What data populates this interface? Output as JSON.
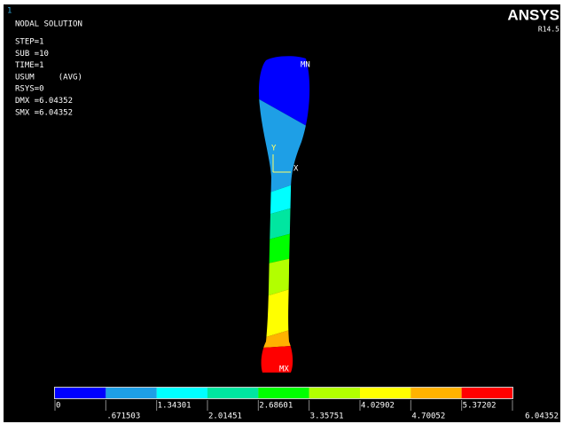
{
  "window_number": "1",
  "title": "NODAL SOLUTION",
  "info": [
    "STEP=1",
    "SUB =10",
    "TIME=1",
    "USUM     (AVG)",
    "RSYS=0",
    "DMX =6.04352",
    "SMX =6.04352"
  ],
  "brand": "ANSYS",
  "version": "R14.5",
  "labels": {
    "min": "MN",
    "max": "MX",
    "y_axis": "Y",
    "x_axis": "X"
  },
  "legend": {
    "colors": [
      "#0000ff",
      "#1e9fe6",
      "#00ffff",
      "#00e6a0",
      "#00ff00",
      "#b2ff00",
      "#ffff00",
      "#ffb200",
      "#ff0000"
    ],
    "labels": [
      "0",
      ".671503",
      "1.34301",
      "2.01451",
      "2.68601",
      "3.35751",
      "4.02902",
      "4.70052",
      "5.37202",
      "6.04352"
    ]
  }
}
